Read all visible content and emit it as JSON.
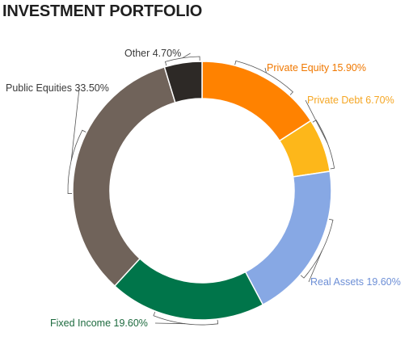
{
  "chart_data": {
    "type": "pie",
    "variant": "donut",
    "title": "INVESTMENT PORTFOLIO",
    "slices": [
      {
        "label": "Private Equity",
        "value": 15.9,
        "display": "15.90%",
        "color": "#FF8200"
      },
      {
        "label": "Private Debt",
        "value": 6.7,
        "display": "6.70%",
        "color": "#FDB71A"
      },
      {
        "label": "Real Assets",
        "value": 19.6,
        "display": "19.60%",
        "color": "#87A8E4"
      },
      {
        "label": "Fixed Income",
        "value": 19.6,
        "display": "19.60%",
        "color": "#00754A"
      },
      {
        "label": "Public Equities",
        "value": 33.5,
        "display": "33.50%",
        "color": "#70635A"
      },
      {
        "label": "Other",
        "value": 4.7,
        "display": "4.70%",
        "color": "#2D2926"
      }
    ],
    "start_angle_deg": 0,
    "direction": "clockwise",
    "labels_colored_by_slice": true
  }
}
